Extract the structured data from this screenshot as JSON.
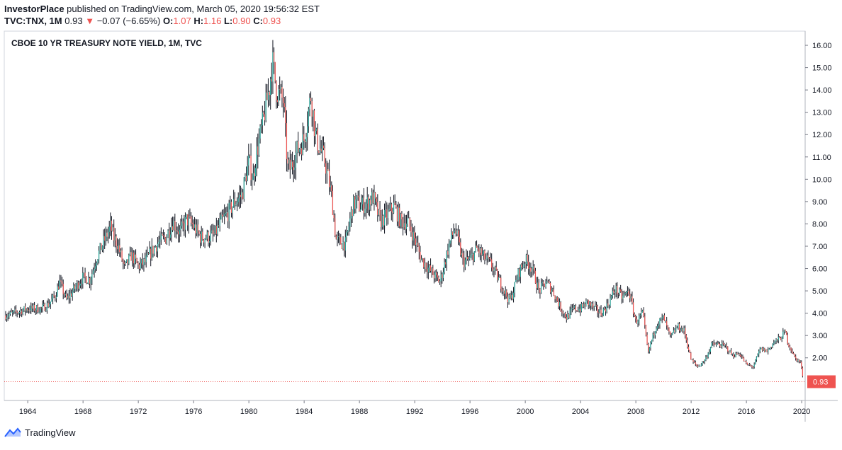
{
  "header": {
    "publisher": "InvestorPlace",
    "published_text": "published on TradingView.com, March 05, 2020 19:56:32 EST",
    "symbol": "TVC:TNX, 1M",
    "last": "0.93",
    "change_arrow": "▼",
    "change": "−0.07 (−6.65%)",
    "o_label": "O:",
    "o_value": "1.07",
    "h_label": "H:",
    "h_value": "1.16",
    "l_label": "L:",
    "l_value": "0.90",
    "c_label": "C:",
    "c_value": "0.93"
  },
  "brand": {
    "name": "TradingView"
  },
  "colors": {
    "up": "#26a69a",
    "down": "#ef5350",
    "candle": "#131722",
    "price_line": "#ef5350",
    "axis": "#787b86"
  },
  "chart_data": {
    "type": "line",
    "title": "CBOE 10 YR TREASURY NOTE YIELD, 1M, TVC",
    "xlabel": "",
    "ylabel": "",
    "xlim": [
      1962.3,
      2020.25
    ],
    "ylim": [
      0,
      16.5
    ],
    "x_ticks": [
      "1964",
      "1968",
      "1972",
      "1976",
      "1980",
      "1984",
      "1988",
      "1992",
      "1996",
      "2000",
      "2004",
      "2008",
      "2012",
      "2016",
      "2020"
    ],
    "y_ticks": [
      "2.00",
      "3.00",
      "4.00",
      "5.00",
      "6.00",
      "7.00",
      "8.00",
      "9.00",
      "10.00",
      "11.00",
      "12.00",
      "13.00",
      "14.00",
      "15.00",
      "16.00"
    ],
    "last_price_label": "0.93",
    "last_price": 0.93,
    "series": [
      {
        "x": [
          1962.4,
          1963.0,
          1964.0,
          1965.0,
          1965.5,
          1966.0,
          1966.3,
          1966.8,
          1967.5,
          1968.0,
          1968.5,
          1969.0,
          1969.5,
          1970.0,
          1970.2,
          1970.5,
          1971.0,
          1971.5,
          1972.0,
          1972.5,
          1973.0,
          1973.5,
          1974.0,
          1974.5,
          1975.0,
          1975.5,
          1976.0,
          1976.5,
          1977.0,
          1977.5,
          1978.0,
          1978.5,
          1979.0,
          1979.5,
          1980.0,
          1980.3,
          1980.5,
          1981.0,
          1981.5,
          1981.7,
          1982.0,
          1982.5,
          1982.8,
          1983.0,
          1983.5,
          1984.0,
          1984.5,
          1984.8,
          1985.0,
          1985.5,
          1986.0,
          1986.3,
          1986.5,
          1987.0,
          1987.5,
          1987.8,
          1988.0,
          1988.5,
          1989.0,
          1989.5,
          1990.0,
          1990.5,
          1991.0,
          1991.5,
          1992.0,
          1992.5,
          1993.0,
          1993.8,
          1994.0,
          1994.5,
          1994.9,
          1995.5,
          1996.0,
          1996.5,
          1997.0,
          1997.5,
          1998.0,
          1998.8,
          1999.0,
          1999.5,
          2000.0,
          2000.5,
          2001.0,
          2001.5,
          2002.0,
          2002.5,
          2003.0,
          2003.5,
          2004.0,
          2004.5,
          2005.0,
          2005.5,
          2006.0,
          2006.5,
          2007.0,
          2007.5,
          2008.0,
          2008.5,
          2008.9,
          2009.0,
          2009.5,
          2010.0,
          2010.5,
          2011.0,
          2011.5,
          2012.0,
          2012.5,
          2013.0,
          2013.5,
          2014.0,
          2014.5,
          2015.0,
          2015.5,
          2016.0,
          2016.5,
          2017.0,
          2017.5,
          2018.0,
          2018.5,
          2018.8,
          2019.0,
          2019.5,
          2019.9,
          2020.1
        ],
        "y": [
          3.9,
          4.0,
          4.2,
          4.2,
          4.4,
          4.8,
          5.4,
          4.6,
          5.2,
          5.6,
          5.5,
          6.5,
          7.2,
          7.9,
          7.4,
          7.1,
          6.0,
          6.6,
          6.1,
          6.3,
          6.8,
          7.2,
          7.4,
          8.1,
          7.6,
          8.2,
          7.9,
          7.4,
          7.4,
          7.5,
          8.1,
          8.5,
          9.0,
          9.3,
          10.8,
          10.0,
          11.0,
          12.5,
          14.2,
          15.3,
          14.0,
          13.5,
          10.5,
          10.5,
          11.3,
          11.8,
          13.8,
          12.0,
          11.6,
          10.8,
          9.2,
          7.3,
          7.2,
          7.1,
          8.8,
          9.0,
          8.8,
          8.9,
          9.2,
          8.1,
          8.4,
          8.8,
          8.1,
          8.1,
          7.3,
          6.4,
          6.0,
          5.4,
          5.8,
          7.1,
          7.8,
          6.3,
          6.4,
          6.9,
          6.5,
          6.2,
          5.6,
          4.6,
          4.7,
          5.8,
          6.4,
          6.0,
          5.0,
          5.4,
          5.0,
          4.3,
          3.8,
          4.2,
          4.2,
          4.5,
          4.2,
          4.0,
          4.4,
          5.1,
          4.7,
          5.0,
          3.6,
          4.0,
          2.2,
          2.5,
          3.5,
          3.8,
          2.9,
          3.4,
          3.2,
          1.9,
          1.6,
          1.9,
          2.6,
          2.6,
          2.5,
          2.1,
          2.2,
          1.7,
          1.6,
          2.4,
          2.3,
          2.7,
          2.9,
          3.2,
          2.7,
          2.0,
          1.8,
          1.1
        ]
      }
    ]
  }
}
